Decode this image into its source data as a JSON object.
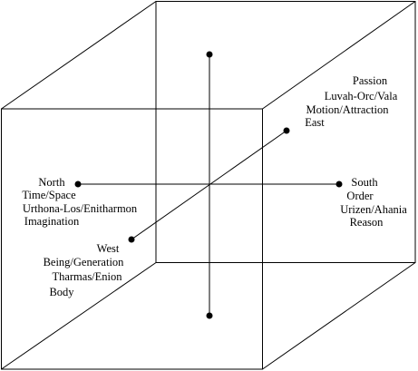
{
  "directions": [
    {
      "lines": [
        "North",
        "Time/Space",
        "Urthona-Los/Enitharmon",
        "Imagination"
      ]
    },
    {
      "lines": [
        "South",
        "Order",
        "Urizen/Ahania",
        "Reason"
      ]
    },
    {
      "lines": [
        "Passion",
        "Luvah-Orc/Vala",
        "Motion/Attraction",
        "East"
      ]
    },
    {
      "lines": [
        "West",
        "Being/Generation",
        "Tharmas/Enion",
        "Body"
      ]
    }
  ]
}
